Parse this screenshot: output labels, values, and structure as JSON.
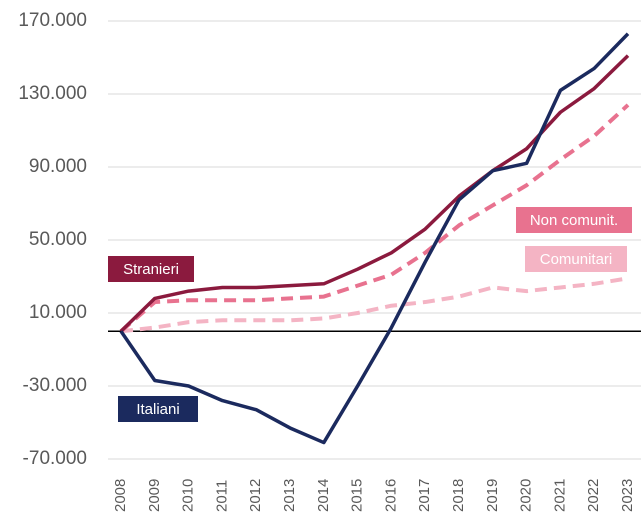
{
  "chart_data": {
    "type": "line",
    "categories": [
      "2008",
      "2009",
      "2010",
      "2011",
      "2012",
      "2013",
      "2014",
      "2015",
      "2016",
      "2017",
      "2018",
      "2019",
      "2020",
      "2021",
      "2022",
      "2023"
    ],
    "series": [
      {
        "name": "Stranieri",
        "color": "#8b1a3e",
        "dashed": false,
        "values": [
          0,
          18000,
          22000,
          24000,
          24000,
          25000,
          26000,
          34000,
          43000,
          56000,
          74000,
          88000,
          100000,
          120000,
          133000,
          151000
        ]
      },
      {
        "name": "Italiani",
        "color": "#1b2a5e",
        "dashed": false,
        "values": [
          0,
          -27000,
          -30000,
          -38000,
          -43000,
          -53000,
          -61000,
          -30000,
          2000,
          38000,
          72000,
          88000,
          92000,
          132000,
          144000,
          163000
        ]
      },
      {
        "name": "Non comunit.",
        "color": "#e8728f",
        "dashed": true,
        "values": [
          0,
          16000,
          17000,
          17000,
          17000,
          18000,
          19000,
          25000,
          31000,
          43000,
          58000,
          69000,
          80000,
          94000,
          107000,
          124000
        ]
      },
      {
        "name": "Comunitari",
        "color": "#f4b4c4",
        "dashed": true,
        "values": [
          0,
          2000,
          5000,
          6000,
          6000,
          6000,
          7000,
          10000,
          14000,
          16000,
          19000,
          24000,
          22000,
          24000,
          26000,
          29000
        ]
      }
    ],
    "ylim": [
      -70000,
      170000
    ],
    "yticks": [
      {
        "value": -70000,
        "label": "-70.000"
      },
      {
        "value": -30000,
        "label": "-30.000"
      },
      {
        "value": 10000,
        "label": "10.000"
      },
      {
        "value": 50000,
        "label": "50.000"
      },
      {
        "value": 90000,
        "label": "90.000"
      },
      {
        "value": 130000,
        "label": "130.000"
      },
      {
        "value": 170000,
        "label": "170.000"
      }
    ],
    "grid": true
  }
}
